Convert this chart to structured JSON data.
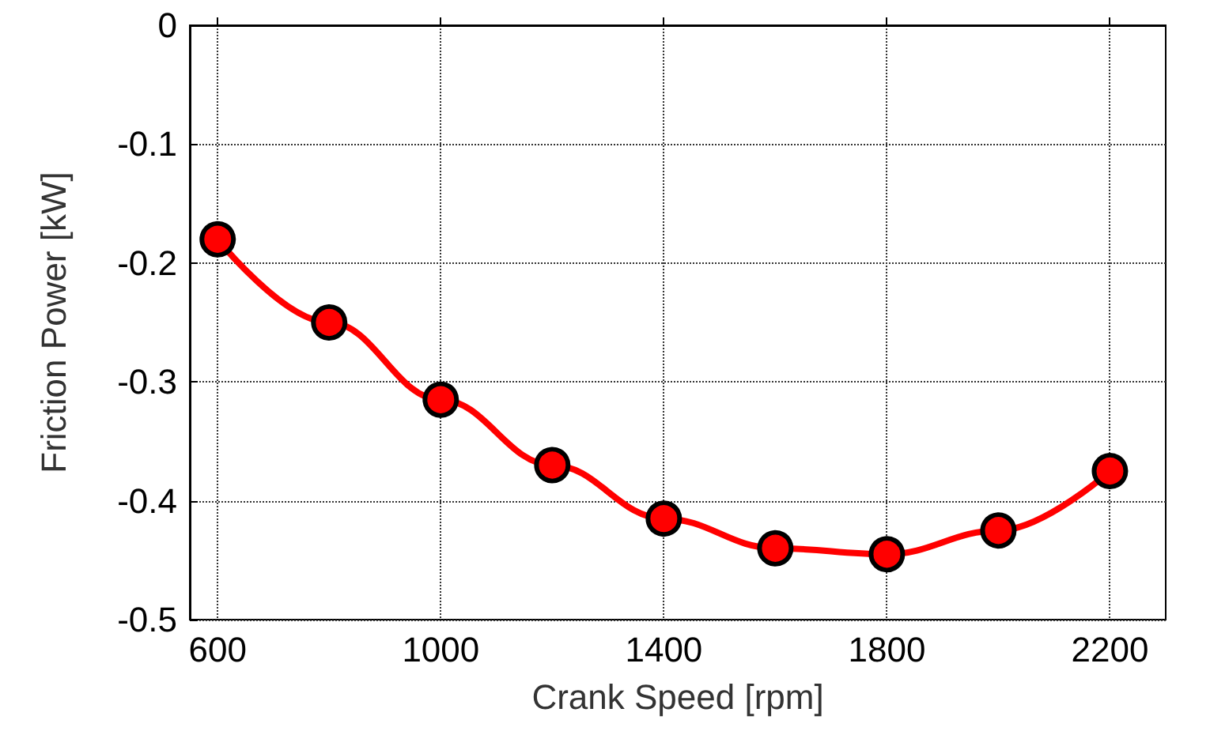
{
  "chart_data": {
    "type": "line",
    "xlabel": "Crank Speed [rpm]",
    "ylabel": "Friction Power [kW]",
    "x": [
      600,
      800,
      1000,
      1200,
      1400,
      1600,
      1800,
      2000,
      2200
    ],
    "series": [
      {
        "color": "#ff0000",
        "values": [
          -0.18,
          -0.25,
          -0.315,
          -0.37,
          -0.415,
          -0.44,
          -0.445,
          -0.425,
          -0.375
        ]
      }
    ],
    "xlim": [
      550,
      2300
    ],
    "xticks": [
      600,
      1000,
      1400,
      1800,
      2200
    ],
    "ylim": [
      -0.5,
      0
    ],
    "yticks": [
      -0.5,
      -0.4,
      -0.3,
      -0.2,
      -0.1,
      0
    ],
    "grid": true,
    "marker": "circle",
    "line_style": "solid"
  }
}
